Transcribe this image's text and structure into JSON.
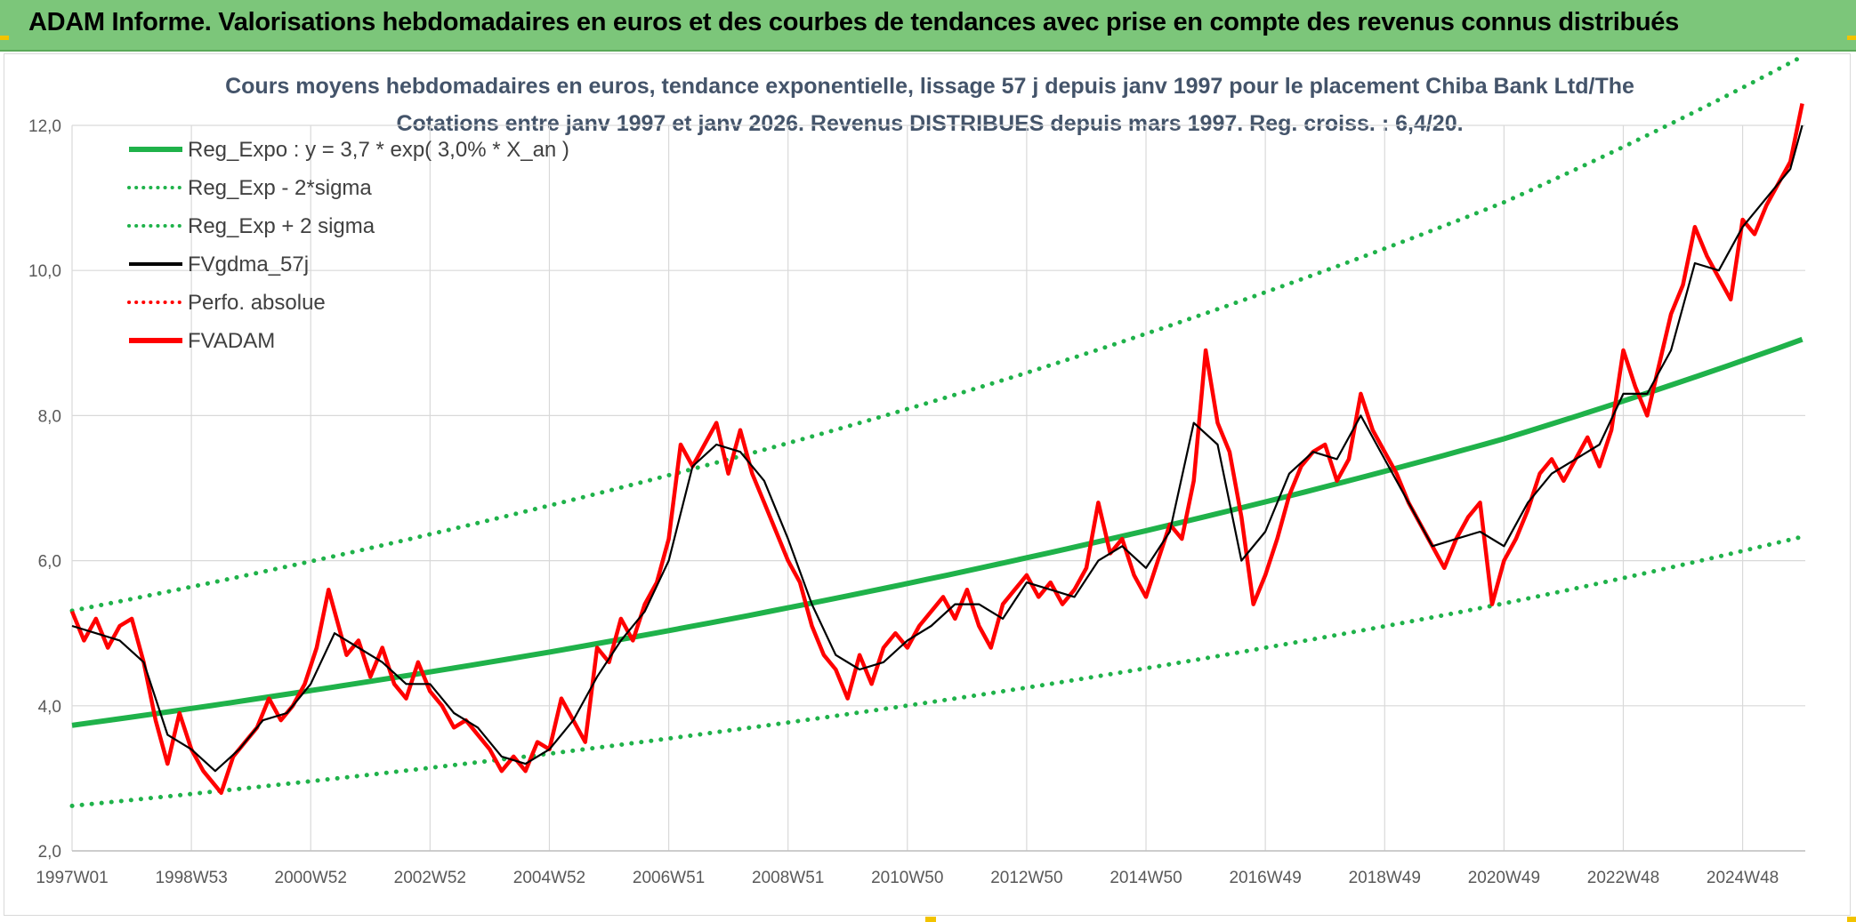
{
  "header": {
    "title": "ADAM Informe. Valorisations hebdomadaires en euros et des courbes de tendances avec prise en compte des revenus connus distribués"
  },
  "colors": {
    "banner": "#7cc67a",
    "trend": "#1fb24a",
    "smooth": "#000000",
    "fvadam": "#ff0000",
    "perfo": "#ff0000",
    "grid": "#d9d9d9"
  },
  "chart_data": {
    "type": "line",
    "title": "Cours moyens hebdomadaires en euros, tendance exponentielle, lissage 57 j depuis janv 1997 pour le placement Chiba Bank Ltd/The",
    "subtitle": "Cotations entre janv 1997 et janv 2026. Revenus DISTRIBUES depuis mars 1997. Reg. croiss. : 6,4/20.",
    "xlabel": "",
    "ylabel": "",
    "ylim": [
      2.0,
      12.0
    ],
    "yticks": [
      "2,0",
      "4,0",
      "6,0",
      "8,0",
      "10,0",
      "12,0"
    ],
    "ytick_values": [
      2,
      4,
      6,
      8,
      10,
      12
    ],
    "xlim": [
      1997.0,
      2026.05
    ],
    "xticks": [
      "1997W01",
      "1998W53",
      "2000W52",
      "2002W52",
      "2004W52",
      "2006W51",
      "2008W51",
      "2010W50",
      "2012W50",
      "2014W50",
      "2016W49",
      "2018W49",
      "2020W49",
      "2022W48",
      "2024W48"
    ],
    "xtick_values": [
      1997.0,
      1999.0,
      2001.0,
      2003.0,
      2005.0,
      2007.0,
      2009.0,
      2011.0,
      2013.0,
      2015.0,
      2017.0,
      2019.0,
      2021.0,
      2023.0,
      2025.0
    ],
    "grid": true,
    "legend_position": "top-left",
    "legend": [
      {
        "label": "Reg_Expo : y = 3,7 * exp( 3,0% *  X_an )",
        "style": "solid-thick",
        "color": "#1fb24a"
      },
      {
        "label": "Reg_Exp - 2*sigma",
        "style": "dotted",
        "color": "#1fb24a"
      },
      {
        "label": "Reg_Exp + 2 sigma",
        "style": "dotted",
        "color": "#1fb24a"
      },
      {
        "label": "FVgdma_57j",
        "style": "solid",
        "color": "#000000"
      },
      {
        "label": "Perfo. absolue",
        "style": "dotted",
        "color": "#ff0000"
      },
      {
        "label": "FVADAM",
        "style": "solid-thick",
        "color": "#ff0000"
      }
    ],
    "series": [
      {
        "name": "Reg_Expo : y = 3,7 * exp( 3,0% *  X_an )",
        "x": [
          1997.0,
          2001.0,
          2005.0,
          2009.0,
          2013.0,
          2017.0,
          2021.0,
          2026.0
        ],
        "values": [
          3.73,
          4.21,
          4.74,
          5.35,
          6.04,
          6.81,
          7.68,
          9.05
        ]
      },
      {
        "name": "Reg_Exp - 2*sigma",
        "x": [
          1997.0,
          2001.0,
          2005.0,
          2009.0,
          2013.0,
          2017.0,
          2021.0,
          2026.0
        ],
        "values": [
          2.62,
          2.96,
          3.34,
          3.77,
          4.25,
          4.8,
          5.41,
          6.33
        ]
      },
      {
        "name": "Reg_Exp + 2 sigma",
        "x": [
          1997.0,
          2001.0,
          2005.0,
          2009.0,
          2013.0,
          2017.0,
          2021.0,
          2026.0
        ],
        "values": [
          5.31,
          5.99,
          6.76,
          7.62,
          8.59,
          9.7,
          10.94,
          12.95
        ]
      },
      {
        "name": "FVADAM",
        "x": [
          1997.0,
          1997.2,
          1997.4,
          1997.6,
          1997.8,
          1998.0,
          1998.2,
          1998.4,
          1998.6,
          1998.8,
          1999.0,
          1999.2,
          1999.5,
          1999.7,
          1999.9,
          2000.1,
          2000.3,
          2000.5,
          2000.7,
          2000.9,
          2001.1,
          2001.3,
          2001.6,
          2001.8,
          2002.0,
          2002.2,
          2002.4,
          2002.6,
          2002.8,
          2003.0,
          2003.2,
          2003.4,
          2003.6,
          2003.8,
          2004.0,
          2004.2,
          2004.4,
          2004.6,
          2004.8,
          2005.0,
          2005.2,
          2005.4,
          2005.6,
          2005.8,
          2006.0,
          2006.2,
          2006.4,
          2006.6,
          2006.8,
          2007.0,
          2007.2,
          2007.4,
          2007.6,
          2007.8,
          2008.0,
          2008.2,
          2008.4,
          2008.6,
          2008.8,
          2009.0,
          2009.2,
          2009.4,
          2009.6,
          2009.8,
          2010.0,
          2010.2,
          2010.4,
          2010.6,
          2010.8,
          2011.0,
          2011.2,
          2011.4,
          2011.6,
          2011.8,
          2012.0,
          2012.2,
          2012.4,
          2012.6,
          2012.8,
          2013.0,
          2013.2,
          2013.4,
          2013.6,
          2013.8,
          2014.0,
          2014.2,
          2014.4,
          2014.6,
          2014.8,
          2015.0,
          2015.2,
          2015.4,
          2015.6,
          2015.8,
          2016.0,
          2016.2,
          2016.4,
          2016.6,
          2016.8,
          2017.0,
          2017.2,
          2017.4,
          2017.6,
          2017.8,
          2018.0,
          2018.2,
          2018.4,
          2018.6,
          2018.8,
          2019.0,
          2019.2,
          2019.4,
          2019.6,
          2019.8,
          2020.0,
          2020.2,
          2020.4,
          2020.6,
          2020.8,
          2021.0,
          2021.2,
          2021.4,
          2021.6,
          2021.8,
          2022.0,
          2022.2,
          2022.4,
          2022.6,
          2022.8,
          2023.0,
          2023.2,
          2023.4,
          2023.6,
          2023.8,
          2024.0,
          2024.2,
          2024.4,
          2024.6,
          2024.8,
          2025.0,
          2025.2,
          2025.4,
          2025.6,
          2025.8,
          2026.0
        ],
        "values": [
          5.3,
          4.9,
          5.2,
          4.8,
          5.1,
          5.2,
          4.6,
          3.8,
          3.2,
          3.9,
          3.4,
          3.1,
          2.8,
          3.3,
          3.5,
          3.7,
          4.1,
          3.8,
          4.0,
          4.3,
          4.8,
          5.6,
          4.7,
          4.9,
          4.4,
          4.8,
          4.3,
          4.1,
          4.6,
          4.2,
          4.0,
          3.7,
          3.8,
          3.6,
          3.4,
          3.1,
          3.3,
          3.1,
          3.5,
          3.4,
          4.1,
          3.8,
          3.5,
          4.8,
          4.6,
          5.2,
          4.9,
          5.4,
          5.7,
          6.3,
          7.6,
          7.3,
          7.6,
          7.9,
          7.2,
          7.8,
          7.2,
          6.8,
          6.4,
          6.0,
          5.7,
          5.1,
          4.7,
          4.5,
          4.1,
          4.7,
          4.3,
          4.8,
          5.0,
          4.8,
          5.1,
          5.3,
          5.5,
          5.2,
          5.6,
          5.1,
          4.8,
          5.4,
          5.6,
          5.8,
          5.5,
          5.7,
          5.4,
          5.6,
          5.9,
          6.8,
          6.1,
          6.3,
          5.8,
          5.5,
          6.0,
          6.5,
          6.3,
          7.1,
          8.9,
          7.9,
          7.5,
          6.6,
          5.4,
          5.8,
          6.3,
          6.9,
          7.3,
          7.5,
          7.6,
          7.1,
          7.4,
          8.3,
          7.8,
          7.5,
          7.2,
          6.8,
          6.5,
          6.2,
          5.9,
          6.3,
          6.6,
          6.8,
          5.4,
          6.0,
          6.3,
          6.7,
          7.2,
          7.4,
          7.1,
          7.4,
          7.7,
          7.3,
          7.8,
          8.9,
          8.4,
          8.0,
          8.7,
          9.4,
          9.8,
          10.6,
          10.2,
          9.9,
          9.6,
          10.7,
          10.5,
          10.9,
          11.2,
          11.5,
          12.3
        ],
        "color": "#ff0000"
      },
      {
        "name": "FVgdma_57j",
        "x": [
          1997.0,
          1997.4,
          1997.8,
          1998.2,
          1998.6,
          1999.0,
          1999.4,
          1999.8,
          2000.2,
          2000.6,
          2001.0,
          2001.4,
          2001.8,
          2002.2,
          2002.6,
          2003.0,
          2003.4,
          2003.8,
          2004.2,
          2004.6,
          2005.0,
          2005.4,
          2005.8,
          2006.2,
          2006.6,
          2007.0,
          2007.4,
          2007.8,
          2008.2,
          2008.6,
          2009.0,
          2009.4,
          2009.8,
          2010.2,
          2010.6,
          2011.0,
          2011.4,
          2011.8,
          2012.2,
          2012.6,
          2013.0,
          2013.4,
          2013.8,
          2014.2,
          2014.6,
          2015.0,
          2015.4,
          2015.8,
          2016.2,
          2016.6,
          2017.0,
          2017.4,
          2017.8,
          2018.2,
          2018.6,
          2019.0,
          2019.4,
          2019.8,
          2020.2,
          2020.6,
          2021.0,
          2021.4,
          2021.8,
          2022.2,
          2022.6,
          2023.0,
          2023.4,
          2023.8,
          2024.2,
          2024.6,
          2025.0,
          2025.4,
          2025.8,
          2026.0
        ],
        "values": [
          5.1,
          5.0,
          4.9,
          4.6,
          3.6,
          3.4,
          3.1,
          3.4,
          3.8,
          3.9,
          4.3,
          5.0,
          4.8,
          4.6,
          4.3,
          4.3,
          3.9,
          3.7,
          3.3,
          3.2,
          3.4,
          3.8,
          4.4,
          4.9,
          5.3,
          6.0,
          7.3,
          7.6,
          7.5,
          7.1,
          6.3,
          5.4,
          4.7,
          4.5,
          4.6,
          4.9,
          5.1,
          5.4,
          5.4,
          5.2,
          5.7,
          5.6,
          5.5,
          6.0,
          6.2,
          5.9,
          6.4,
          7.9,
          7.6,
          6.0,
          6.4,
          7.2,
          7.5,
          7.4,
          8.0,
          7.4,
          6.8,
          6.2,
          6.3,
          6.4,
          6.2,
          6.8,
          7.2,
          7.4,
          7.6,
          8.3,
          8.3,
          8.9,
          10.1,
          10.0,
          10.6,
          11.0,
          11.4,
          12.0
        ],
        "color": "#000000"
      }
    ]
  }
}
